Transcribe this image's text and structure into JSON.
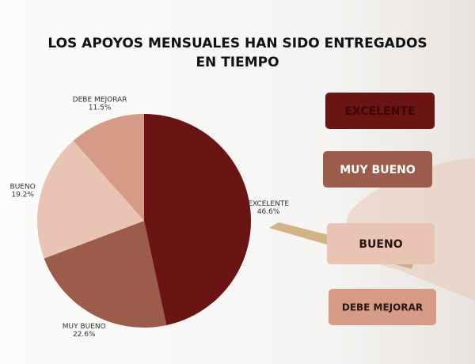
{
  "chart_data": {
    "type": "pie",
    "title": "LOS APOYOS MENSUALES HAN SIDO ENTREGADOS EN TIEMPO",
    "categories": [
      "EXCELENTE",
      "MUY BUENO",
      "BUENO",
      "DEBE MEJORAR"
    ],
    "values": [
      46.6,
      22.6,
      19.2,
      11.5
    ],
    "value_labels": [
      "46.6%",
      "22.6%",
      "19.2%",
      "11.5%"
    ],
    "colors": [
      "#6b1414",
      "#9c5c4c",
      "#e9c3b3",
      "#d69b87"
    ],
    "legend": "right"
  }
}
